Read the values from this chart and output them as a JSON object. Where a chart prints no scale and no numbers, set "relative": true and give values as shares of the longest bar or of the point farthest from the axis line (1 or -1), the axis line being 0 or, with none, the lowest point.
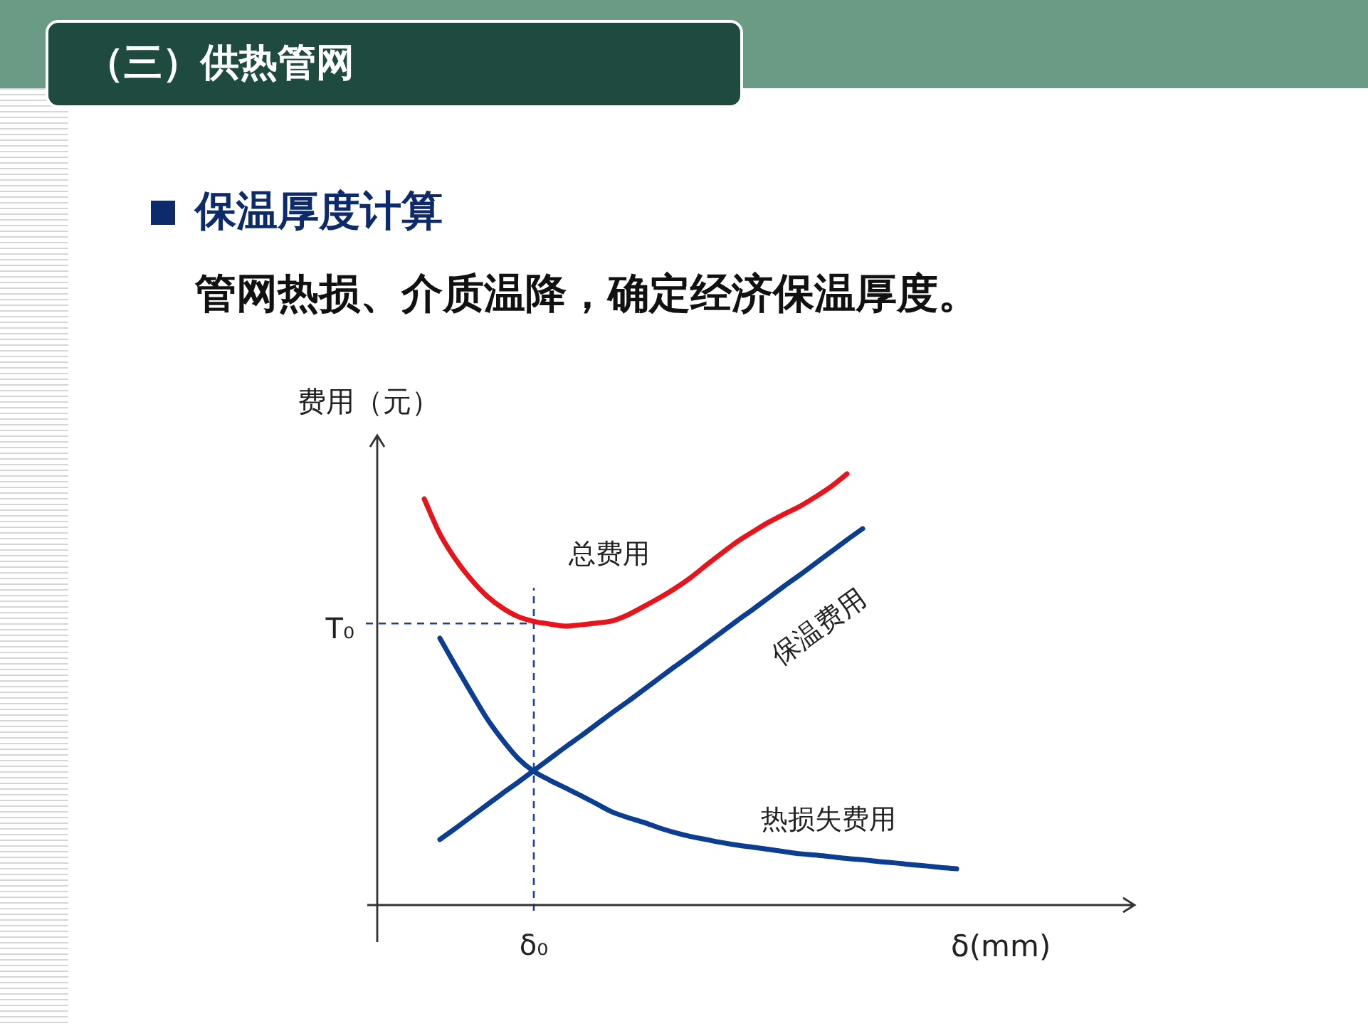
{
  "chart_data": {
    "type": "line",
    "title": "（三）供热管网",
    "subtitle": "保温厚度计算",
    "annotations": [
      "管网热损、介质温降，确定经济保温厚度。",
      "δ₀"
    ],
    "xlabel": "δ(mm)",
    "ylabel": "费用（元）",
    "relative": true,
    "marker": "none",
    "categories": [
      null,
      null,
      null,
      null,
      null,
      null,
      null,
      null,
      null,
      null,
      null,
      null,
      null,
      null,
      null,
      null,
      null,
      null,
      null,
      null,
      null,
      null,
      null,
      null,
      null,
      null,
      null,
      null,
      null,
      null,
      null,
      null,
      null,
      null,
      null,
      null,
      null,
      null,
      null,
      null,
      null,
      null,
      null,
      null,
      null,
      null,
      null,
      null,
      null
    ],
    "series": [
      {
        "name": "总费用",
        "color": "#e8141b",
        "values": [
          null,
          null,
          null,
          0.942,
          0.861,
          0.802,
          0.755,
          0.717,
          0.689,
          0.669,
          0.658,
          0.652,
          0.647,
          0.65,
          0.654,
          0.659,
          0.673,
          0.692,
          0.712,
          0.734,
          0.759,
          0.788,
          0.816,
          0.843,
          0.866,
          0.888,
          0.907,
          0.925,
          0.947,
          0.971,
          1,
          null,
          null,
          null,
          null,
          null,
          null,
          null,
          null,
          null,
          null,
          null,
          null,
          null,
          null,
          null,
          null,
          null,
          null
        ]
      },
      {
        "name": "保温费用",
        "color": "#0b3d91",
        "values": [
          null,
          null,
          null,
          null,
          0.152,
          0.178,
          0.205,
          0.232,
          0.259,
          0.285,
          0.312,
          0.339,
          0.366,
          0.392,
          0.419,
          0.446,
          0.472,
          0.499,
          0.526,
          0.553,
          0.579,
          0.606,
          0.633,
          0.66,
          0.686,
          0.713,
          0.74,
          0.766,
          0.793,
          0.82,
          0.847,
          0.873,
          null,
          null,
          null,
          null,
          null,
          null,
          null,
          null,
          null,
          null,
          null,
          null,
          null,
          null,
          null,
          null,
          null
        ]
      },
      {
        "name": "热损失费用",
        "color": "#0b3d91",
        "values": [
          null,
          null,
          null,
          null,
          0.619,
          0.555,
          0.493,
          0.433,
          0.383,
          0.34,
          0.31,
          0.29,
          0.272,
          0.254,
          0.235,
          0.216,
          0.203,
          0.192,
          0.179,
          0.168,
          0.159,
          0.152,
          0.145,
          0.139,
          0.134,
          0.129,
          0.124,
          0.119,
          0.116,
          0.112,
          0.108,
          0.105,
          0.101,
          0.098,
          0.094,
          0.091,
          0.087,
          0.084,
          null,
          null,
          null,
          null,
          null,
          null,
          null,
          null,
          null,
          null,
          null
        ]
      }
    ],
    "ref_lines": [
      {
        "axis": "y",
        "value": 0.653,
        "label": "T₀",
        "color": "#1f3f8f",
        "line_style": "dashed"
      }
    ]
  }
}
